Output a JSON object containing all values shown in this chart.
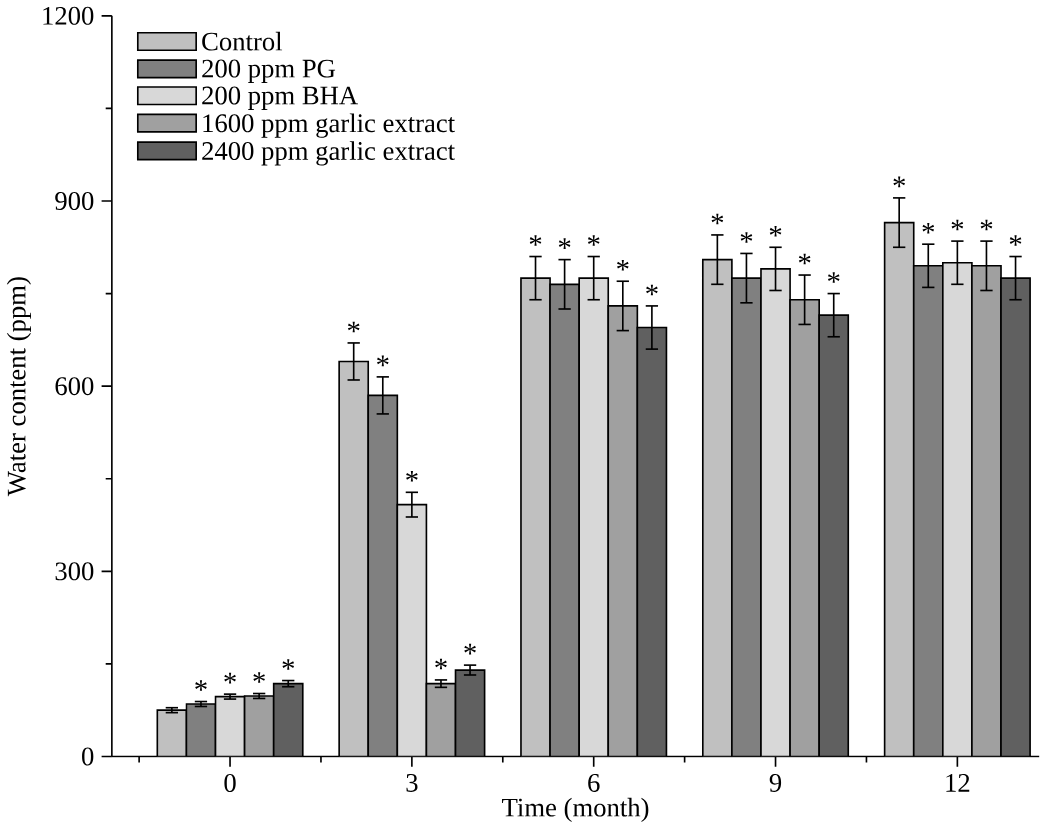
{
  "chart_data": {
    "type": "bar",
    "xlabel": "Time (month)",
    "ylabel": "Water content (ppm)",
    "categories": [
      "0",
      "3",
      "6",
      "9",
      "12"
    ],
    "ylim": [
      0,
      1200
    ],
    "yticks": [
      0,
      300,
      600,
      900,
      1200
    ],
    "legend": "top left",
    "grid": false,
    "series": [
      {
        "name": "Control",
        "color": "#c0c0c0",
        "values": [
          75,
          640,
          775,
          805,
          865
        ],
        "errors": [
          4,
          30,
          35,
          40,
          40
        ],
        "value_labels": [
          null,
          "*",
          "*",
          "*",
          "*"
        ]
      },
      {
        "name": "200 ppm PG",
        "color": "#808080",
        "values": [
          85,
          585,
          765,
          775,
          795
        ],
        "errors": [
          4,
          30,
          40,
          40,
          35
        ],
        "value_labels": [
          "*",
          "*",
          "*",
          "*",
          "*"
        ]
      },
      {
        "name": "200 ppm BHA",
        "color": "#d8d8d8",
        "values": [
          97,
          408,
          775,
          790,
          800
        ],
        "errors": [
          4,
          20,
          35,
          35,
          35
        ],
        "value_labels": [
          "*",
          "*",
          "*",
          "*",
          "*"
        ]
      },
      {
        "name": "1600 ppm garlic extract",
        "color": "#a0a0a0",
        "values": [
          98,
          118,
          730,
          740,
          795
        ],
        "errors": [
          4,
          6,
          40,
          40,
          40
        ],
        "value_labels": [
          "*",
          "*",
          "*",
          "*",
          "*"
        ]
      },
      {
        "name": "2400 ppm garlic extract",
        "color": "#606060",
        "values": [
          118,
          140,
          695,
          715,
          775
        ],
        "errors": [
          5,
          8,
          35,
          35,
          35
        ],
        "value_labels": [
          "*",
          "*",
          "*",
          "*",
          "*"
        ]
      }
    ]
  }
}
